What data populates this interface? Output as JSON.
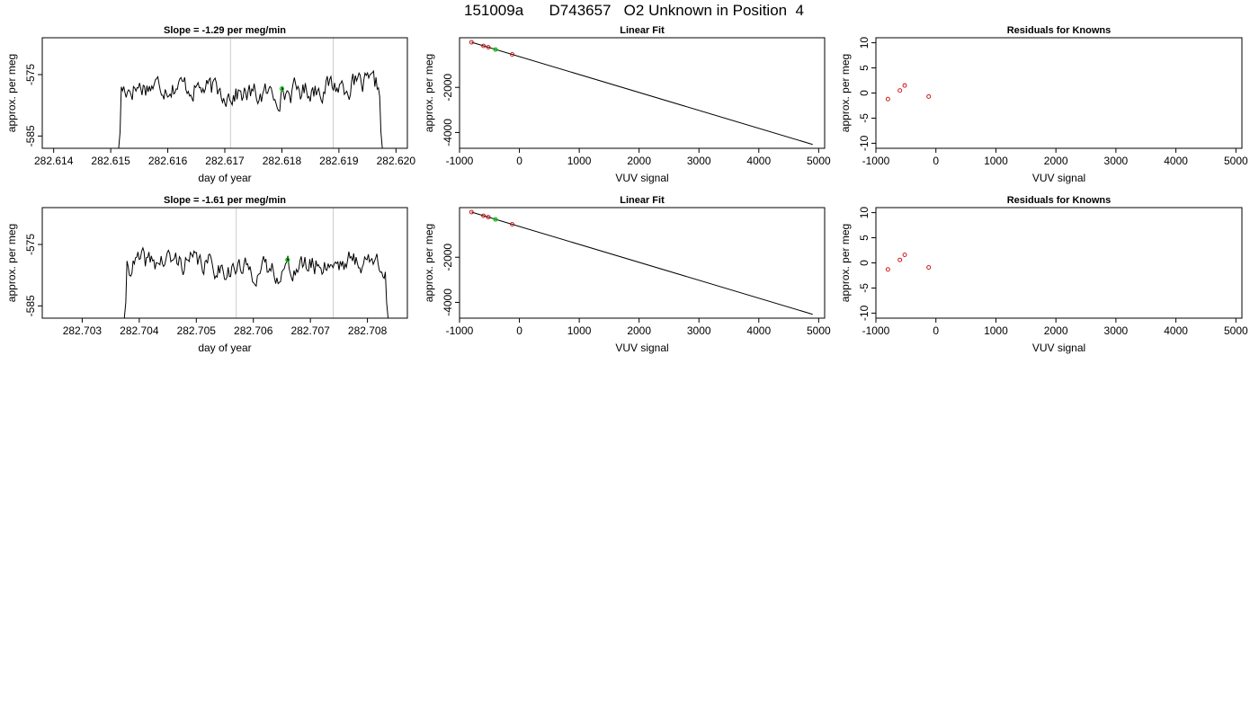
{
  "title": "151009a      D743657   O2 Unknown in Position  4",
  "chart_data": [
    {
      "type": "line",
      "title": "Slope =  -1.29  per meg/min",
      "xlabel": "day of year",
      "ylabel": "approx. per meg",
      "xlim": [
        282.6138,
        282.6202
      ],
      "ylim": [
        -587,
        -569
      ],
      "xticks": [
        "282.614",
        "282.615",
        "282.616",
        "282.617",
        "282.618",
        "282.619",
        "282.620"
      ],
      "xtick_values": [
        282.614,
        282.615,
        282.616,
        282.617,
        282.618,
        282.619,
        282.62
      ],
      "yticks": [
        "-575",
        "-585"
      ],
      "ytick_values": [
        -575,
        -585
      ],
      "vlines": [
        282.6171,
        282.6189
      ],
      "series_start": 282.6151,
      "series_end": 282.6198,
      "series_base": -577.5,
      "highlight_point": {
        "x": 282.618,
        "y": -577.3
      },
      "seed": 17,
      "colors": {
        "line": "#000000",
        "vline": "#cccccc",
        "highlight": "#00cc00"
      }
    },
    {
      "type": "scatter",
      "title": "Linear Fit",
      "xlabel": "VUV signal",
      "ylabel": "approx. per meg",
      "xlim": [
        -1000,
        5100
      ],
      "ylim": [
        -4700,
        200
      ],
      "xticks": [
        "-1000",
        "0",
        "1000",
        "2000",
        "3000",
        "4000",
        "5000"
      ],
      "xtick_values": [
        -1000,
        0,
        1000,
        2000,
        3000,
        4000,
        5000
      ],
      "yticks": [
        "-2000",
        "-4000"
      ],
      "ytick_values": [
        -2000,
        -4000
      ],
      "fit_line": {
        "x": [
          -800,
          4900
        ],
        "y": [
          0,
          -4530
        ]
      },
      "knowns": [
        {
          "x": -800,
          "y": 0
        },
        {
          "x": -600,
          "y": -160
        },
        {
          "x": -520,
          "y": -220
        },
        {
          "x": -120,
          "y": -540
        }
      ],
      "unknowns": [
        {
          "x": -400,
          "y": -320
        }
      ],
      "colors": {
        "line": "#000000",
        "known": "#cc0000",
        "unknown": "#00cc00"
      }
    },
    {
      "type": "scatter",
      "title": "Residuals for Knowns",
      "xlabel": "VUV signal",
      "ylabel": "approx. per meg",
      "xlim": [
        -1000,
        5100
      ],
      "ylim": [
        -11,
        11
      ],
      "xticks": [
        "-1000",
        "0",
        "1000",
        "2000",
        "3000",
        "4000",
        "5000"
      ],
      "xtick_values": [
        -1000,
        0,
        1000,
        2000,
        3000,
        4000,
        5000
      ],
      "yticks": [
        "-10",
        "-5",
        "0",
        "5",
        "10"
      ],
      "ytick_values": [
        -10,
        -5,
        0,
        5,
        10
      ],
      "knowns": [
        {
          "x": -800,
          "y": -1.2
        },
        {
          "x": -600,
          "y": 0.5
        },
        {
          "x": -520,
          "y": 1.5
        },
        {
          "x": -120,
          "y": -0.7
        }
      ],
      "colors": {
        "known": "#cc0000"
      }
    },
    {
      "type": "line",
      "title": "Slope =  -1.61  per meg/min",
      "xlabel": "day of year",
      "ylabel": "approx. per meg",
      "xlim": [
        282.7023,
        282.7087
      ],
      "ylim": [
        -587,
        -569
      ],
      "xticks": [
        "282.703",
        "282.704",
        "282.705",
        "282.706",
        "282.707",
        "282.708"
      ],
      "xtick_values": [
        282.703,
        282.704,
        282.705,
        282.706,
        282.707,
        282.708
      ],
      "yticks": [
        "-575",
        "-585"
      ],
      "ytick_values": [
        -575,
        -585
      ],
      "vlines": [
        282.7057,
        282.7074
      ],
      "series_start": 282.7037,
      "series_end": 282.7084,
      "series_base": -578.5,
      "highlight_point": {
        "x": 282.7066,
        "y": -577.5
      },
      "seed": 41,
      "colors": {
        "line": "#000000",
        "vline": "#cccccc",
        "highlight": "#00cc00"
      }
    },
    {
      "type": "scatter",
      "title": "Linear Fit",
      "xlabel": "VUV signal",
      "ylabel": "approx. per meg",
      "xlim": [
        -1000,
        5100
      ],
      "ylim": [
        -4700,
        200
      ],
      "xticks": [
        "-1000",
        "0",
        "1000",
        "2000",
        "3000",
        "4000",
        "5000"
      ],
      "xtick_values": [
        -1000,
        0,
        1000,
        2000,
        3000,
        4000,
        5000
      ],
      "yticks": [
        "-2000",
        "-4000"
      ],
      "ytick_values": [
        -2000,
        -4000
      ],
      "fit_line": {
        "x": [
          -800,
          4900
        ],
        "y": [
          0,
          -4530
        ]
      },
      "knowns": [
        {
          "x": -800,
          "y": 0
        },
        {
          "x": -600,
          "y": -160
        },
        {
          "x": -520,
          "y": -220
        },
        {
          "x": -120,
          "y": -540
        }
      ],
      "unknowns": [
        {
          "x": -400,
          "y": -320
        }
      ],
      "colors": {
        "line": "#000000",
        "known": "#cc0000",
        "unknown": "#00cc00"
      }
    },
    {
      "type": "scatter",
      "title": "Residuals for Knowns",
      "xlabel": "VUV signal",
      "ylabel": "approx. per meg",
      "xlim": [
        -1000,
        5100
      ],
      "ylim": [
        -11,
        11
      ],
      "xticks": [
        "-1000",
        "0",
        "1000",
        "2000",
        "3000",
        "4000",
        "5000"
      ],
      "xtick_values": [
        -1000,
        0,
        1000,
        2000,
        3000,
        4000,
        5000
      ],
      "yticks": [
        "-10",
        "-5",
        "0",
        "5",
        "10"
      ],
      "ytick_values": [
        -10,
        -5,
        0,
        5,
        10
      ],
      "knowns": [
        {
          "x": -800,
          "y": -1.3
        },
        {
          "x": -600,
          "y": 0.6
        },
        {
          "x": -520,
          "y": 1.6
        },
        {
          "x": -120,
          "y": -0.9
        }
      ],
      "colors": {
        "known": "#cc0000"
      }
    }
  ]
}
